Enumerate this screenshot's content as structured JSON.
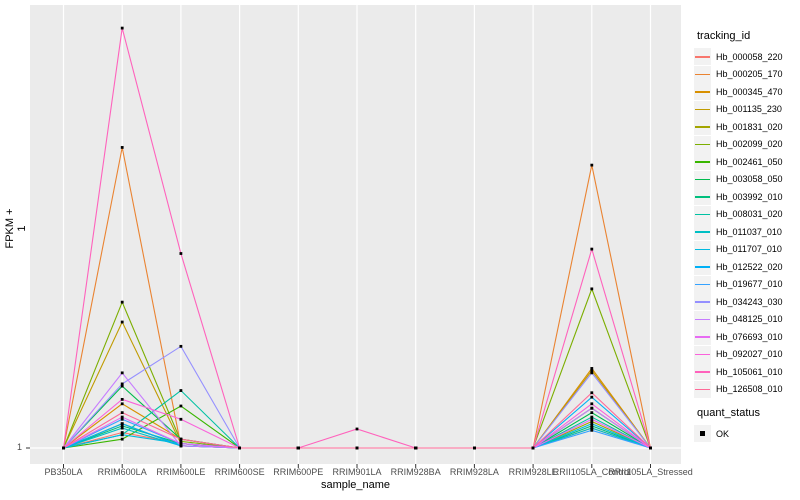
{
  "figure": {
    "background": "#ffffff",
    "panel_background": "#ebebeb",
    "grid_color": "#ffffff",
    "tick_color": "#333333"
  },
  "axes": {
    "x": {
      "label": "sample_name",
      "tick_labels": [
        "PB350LA",
        "RRIM600LA",
        "RRIM600LE",
        "RRIM600SE",
        "RRIM600PE",
        "RRIM901LA",
        "RRIM928BA",
        "RRIM928LA",
        "RRIM928LE",
        "RRII105LA_Control",
        "RRII105LA_Stressed"
      ]
    },
    "y": {
      "label": "FPKM + 1",
      "tick_labels": [
        "1"
      ]
    }
  },
  "legend": {
    "tracking": {
      "title": "tracking_id"
    },
    "quant": {
      "title": "quant_status",
      "items": [
        {
          "label": "OK",
          "marker_color": "#000000",
          "marker_shape": "square"
        }
      ]
    }
  },
  "chart_data": {
    "type": "line",
    "title": "",
    "xlabel": "sample_name",
    "ylabel": "FPKM + 1",
    "legend_position": "right",
    "grid": "major",
    "y_axis_note": "only labeled y tick is 1 (the baseline); rel_values are series heights as a fraction of panel height above the y=1 gridline, estimated from pixels",
    "ytick_baseline": 1,
    "categories": [
      "PB350LA",
      "RRIM600LA",
      "RRIM600LE",
      "RRIM600SE",
      "RRIM600PE",
      "RRIM901LA",
      "RRIM928BA",
      "RRIM928LA",
      "RRIM928LE",
      "RRII105LA_Control",
      "RRII105LA_Stressed"
    ],
    "point_marker": {
      "shape": "square",
      "color": "#000000",
      "meaning": "quant_status OK"
    },
    "series": [
      {
        "name": "Hb_000058_220",
        "color": "#F8766D",
        "rel_values": [
          0,
          0.035,
          0.01,
          0,
          0,
          0,
          0,
          0,
          0,
          0.045,
          0
        ]
      },
      {
        "name": "Hb_000205_170",
        "color": "#EA8331",
        "rel_values": [
          0,
          0.68,
          0.005,
          0,
          0,
          0,
          0,
          0,
          0,
          0.64,
          0
        ]
      },
      {
        "name": "Hb_000345_470",
        "color": "#D89000",
        "rel_values": [
          0,
          0.1,
          0.02,
          0,
          0,
          0,
          0,
          0,
          0,
          0.18,
          0
        ]
      },
      {
        "name": "Hb_001135_230",
        "color": "#C09B00",
        "rel_values": [
          0,
          0.285,
          0.01,
          0,
          0,
          0,
          0,
          0,
          0,
          0.175,
          0
        ]
      },
      {
        "name": "Hb_001831_020",
        "color": "#A3A500",
        "rel_values": [
          0,
          0.055,
          0.005,
          0,
          0,
          0,
          0,
          0,
          0,
          0.06,
          0
        ]
      },
      {
        "name": "Hb_002099_020",
        "color": "#7CAE00",
        "rel_values": [
          0,
          0.33,
          0.015,
          0,
          0,
          0,
          0,
          0,
          0,
          0.36,
          0
        ]
      },
      {
        "name": "Hb_002461_050",
        "color": "#39B600",
        "rel_values": [
          0,
          0.02,
          0.095,
          0,
          0,
          0,
          0,
          0,
          0,
          0.09,
          0
        ]
      },
      {
        "name": "Hb_003058_050",
        "color": "#00BB4E",
        "rel_values": [
          0,
          0.14,
          0.02,
          0,
          0,
          0,
          0,
          0,
          0,
          0.08,
          0
        ]
      },
      {
        "name": "Hb_003992_010",
        "color": "#00BF7D",
        "rel_values": [
          0,
          0.05,
          0.01,
          0,
          0,
          0,
          0,
          0,
          0,
          0.05,
          0
        ]
      },
      {
        "name": "Hb_008031_020",
        "color": "#00C1A3",
        "rel_values": [
          0,
          0.03,
          0.13,
          0,
          0,
          0,
          0,
          0,
          0,
          0.07,
          0
        ]
      },
      {
        "name": "Hb_011037_010",
        "color": "#00BFC4",
        "rel_values": [
          0,
          0.045,
          0.005,
          0,
          0,
          0,
          0,
          0,
          0,
          0.045,
          0
        ]
      },
      {
        "name": "Hb_011707_010",
        "color": "#00BAE0",
        "rel_values": [
          0,
          0.03,
          0.01,
          0,
          0,
          0,
          0,
          0,
          0,
          0.055,
          0
        ]
      },
      {
        "name": "Hb_012522_020",
        "color": "#00B0F6",
        "rel_values": [
          0,
          0.055,
          0.005,
          0,
          0,
          0,
          0,
          0,
          0,
          0.115,
          0
        ]
      },
      {
        "name": "Hb_019677_010",
        "color": "#35A2FF",
        "rel_values": [
          0,
          0.065,
          0.01,
          0,
          0,
          0,
          0,
          0,
          0,
          0.04,
          0
        ]
      },
      {
        "name": "Hb_034243_030",
        "color": "#9590FF",
        "rel_values": [
          0,
          0.145,
          0.23,
          0,
          0,
          0,
          0,
          0,
          0,
          0.17,
          0
        ]
      },
      {
        "name": "Hb_048125_010",
        "color": "#C77CFF",
        "rel_values": [
          0,
          0.17,
          0.005,
          0,
          0,
          0,
          0,
          0,
          0,
          0.09,
          0
        ]
      },
      {
        "name": "Hb_076693_010",
        "color": "#E76BF3",
        "rel_values": [
          0,
          0.07,
          0.01,
          0,
          0,
          0,
          0,
          0,
          0,
          0.065,
          0
        ]
      },
      {
        "name": "Hb_092027_010",
        "color": "#FA62DB",
        "rel_values": [
          0,
          0.11,
          0.065,
          0,
          0,
          0,
          0,
          0,
          0,
          0.1,
          0
        ]
      },
      {
        "name": "Hb_105061_010",
        "color": "#FF62BC",
        "rel_values": [
          0,
          0.95,
          0.44,
          0,
          0,
          0.043,
          0,
          0,
          0,
          0.45,
          0
        ]
      },
      {
        "name": "Hb_126508_010",
        "color": "#FF6A98",
        "rel_values": [
          0,
          0.08,
          0.02,
          0,
          0,
          0,
          0,
          0,
          0,
          0.125,
          0
        ]
      }
    ]
  }
}
